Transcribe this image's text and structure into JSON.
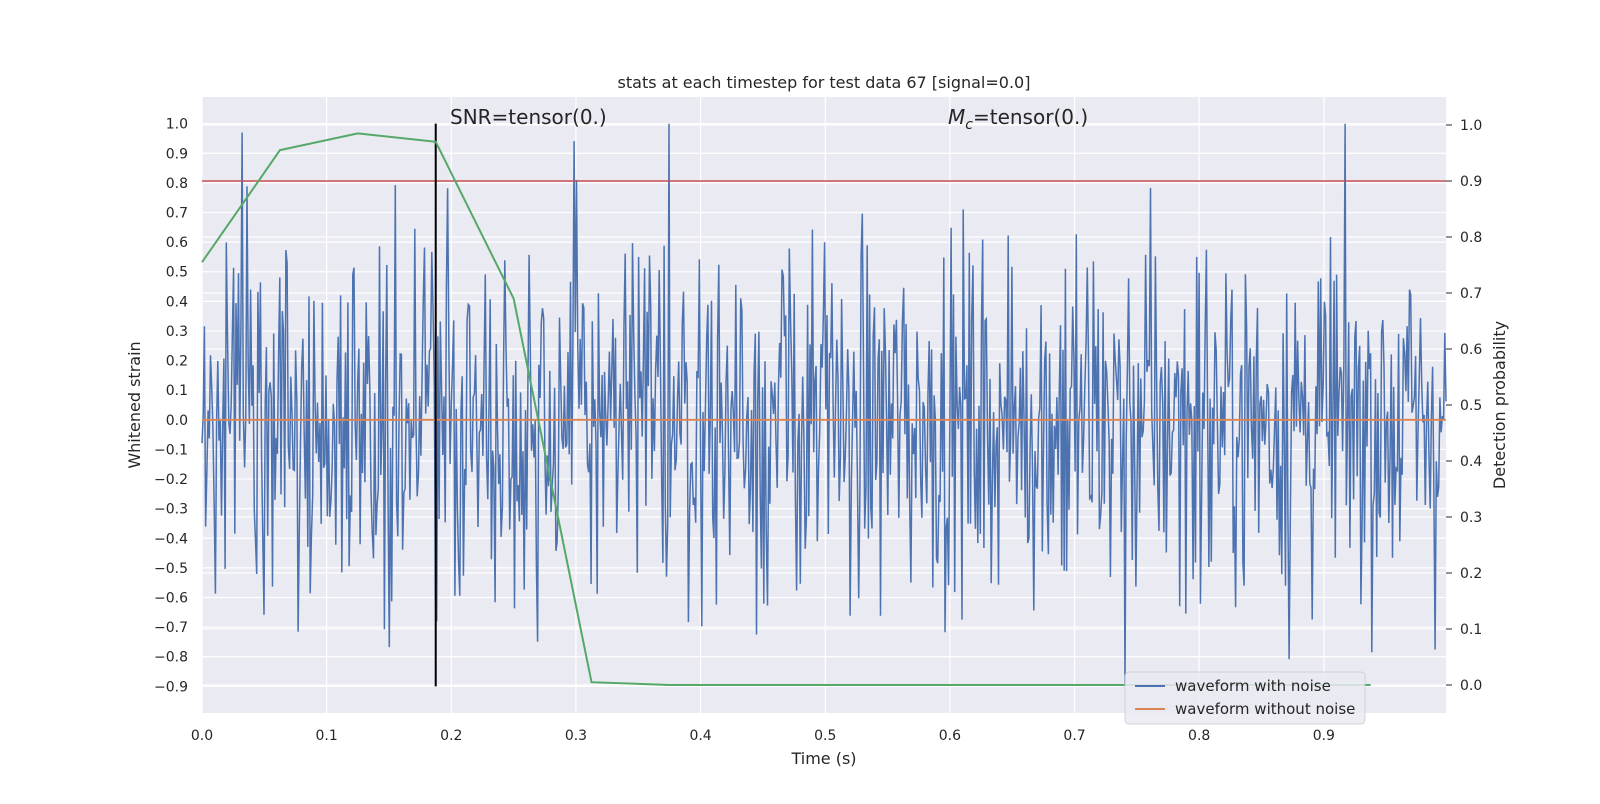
{
  "chart_data": {
    "type": "line",
    "title": "stats at each timestep for test data 67 [signal=0.0]",
    "xlabel": "Time (s)",
    "ylabel_left": "Whitened strain",
    "ylabel_right": "Detection probability",
    "xlim": [
      0.0,
      0.998
    ],
    "ylim_left": [
      -0.99,
      1.09
    ],
    "ylim_right": [
      -0.05,
      1.05
    ],
    "x_ticks": [
      "0.0",
      "0.1",
      "0.2",
      "0.3",
      "0.4",
      "0.5",
      "0.6",
      "0.7",
      "0.8",
      "0.9"
    ],
    "x_tick_values": [
      0.0,
      0.1,
      0.2,
      0.3,
      0.4,
      0.5,
      0.6,
      0.7,
      0.8,
      0.9
    ],
    "y_left_ticks": [
      "1.0",
      "0.9",
      "0.8",
      "0.7",
      "0.6",
      "0.5",
      "0.4",
      "0.3",
      "0.2",
      "0.1",
      "0.0",
      "−0.1",
      "−0.2",
      "−0.3",
      "−0.4",
      "−0.5",
      "−0.6",
      "−0.7",
      "−0.8",
      "−0.9"
    ],
    "y_left_tick_values": [
      1.0,
      0.9,
      0.8,
      0.7,
      0.6,
      0.5,
      0.4,
      0.3,
      0.2,
      0.1,
      0.0,
      -0.1,
      -0.2,
      -0.3,
      -0.4,
      -0.5,
      -0.6,
      -0.7,
      -0.8,
      -0.9
    ],
    "y_right_ticks": [
      "1.0",
      "0.9",
      "0.8",
      "0.7",
      "0.6",
      "0.5",
      "0.4",
      "0.3",
      "0.2",
      "0.1",
      "0.0"
    ],
    "y_right_tick_values": [
      1.0,
      0.9,
      0.8,
      0.7,
      0.6,
      0.5,
      0.4,
      0.3,
      0.2,
      0.1,
      0.0
    ],
    "annotations": {
      "snr": "SNR=tensor(0.)",
      "mc_symbol": "M",
      "mc_subscript": "c",
      "mc_value": "=tensor(0.)"
    },
    "series": [
      {
        "name": "waveform with noise",
        "color": "#4c72b0",
        "axis": "left",
        "n_samples": 1024,
        "x_range": [
          0.0,
          0.998
        ],
        "amplitude_range": [
          -0.9,
          1.0
        ],
        "notable_peaks": [
          {
            "x": 0.032,
            "y": 0.97
          },
          {
            "x": 0.375,
            "y": 1.0
          },
          {
            "x": 0.3,
            "y": 0.81
          },
          {
            "x": 0.74,
            "y": -0.9
          }
        ]
      },
      {
        "name": "waveform without noise",
        "color": "#dd8452",
        "axis": "left",
        "x": [
          0.0,
          0.998
        ],
        "y": [
          0.0,
          0.0
        ]
      },
      {
        "name": "",
        "color": "#55a868",
        "axis": "right",
        "x": [
          0.0,
          0.0625,
          0.125,
          0.1875,
          0.25,
          0.3125,
          0.375,
          0.4375,
          0.5,
          0.5625,
          0.625,
          0.6875,
          0.75,
          0.8125,
          0.875,
          0.9375
        ],
        "y": [
          0.755,
          0.955,
          0.985,
          0.97,
          0.69,
          0.005,
          0.0,
          0.0,
          0.0,
          0.0,
          0.0,
          0.0,
          0.0,
          0.0,
          0.0,
          0.0
        ]
      }
    ],
    "threshold": {
      "axis": "right",
      "y": 0.9,
      "color": "#c44e52"
    },
    "marker_line": {
      "x": 0.1875,
      "y_range": [
        -0.9,
        1.0
      ],
      "color": "#000000"
    },
    "legend": {
      "placement": "lower-right"
    },
    "grid": true,
    "background": "#eaeaf2"
  }
}
